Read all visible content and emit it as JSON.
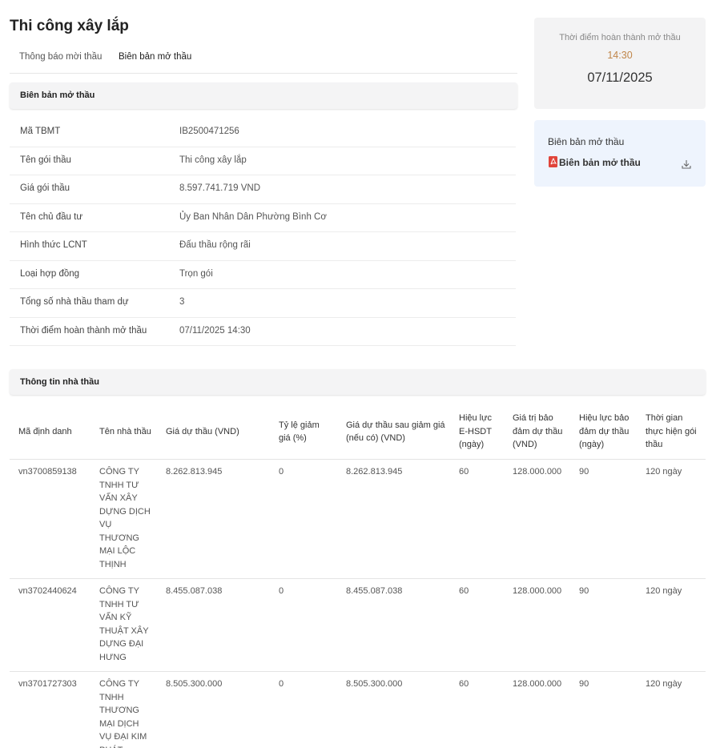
{
  "header": {
    "title": "Thi công xây lắp",
    "tabs": [
      "Thông báo mời thầu",
      "Biên bản mở thầu"
    ]
  },
  "summary_card": {
    "label": "Thời điểm hoàn thành mở thầu",
    "time": "14:30",
    "date": "07/11/2025"
  },
  "document_card": {
    "title": "Biên bản mở thầu",
    "file": "Biên bản mở thầu"
  },
  "info_section": {
    "title": "Biên bản mở thầu",
    "rows": [
      [
        "Mã TBMT",
        "IB2500471256"
      ],
      [
        "Tên gói thầu",
        "Thi công xây lắp"
      ],
      [
        "Giá gói thầu",
        "8.597.741.719 VND"
      ],
      [
        "Tên chủ đầu tư",
        "Ủy Ban Nhân Dân Phường Bình Cơ"
      ],
      [
        "Hình thức LCNT",
        "Đấu thầu rộng rãi"
      ],
      [
        "Loại hợp đồng",
        "Trọn gói"
      ],
      [
        "Tổng số nhà thầu tham dự",
        "3"
      ],
      [
        "Thời điểm hoàn thành mở thầu",
        "07/11/2025 14:30"
      ]
    ]
  },
  "bidders": {
    "title": "Thông tin nhà thầu",
    "columns": [
      "Mã định danh",
      "Tên nhà thầu",
      "Giá dự thầu (VND)",
      "Tỷ lệ giảm giá (%)",
      "Giá dự thầu sau giảm giá (nếu có) (VND)",
      "Hiệu lực E-HSDT (ngày)",
      "Giá trị bảo đảm dự thầu (VND)",
      "Hiệu lực bảo đảm dự thầu (ngày)",
      "Thời gian thực hiện gói thầu"
    ],
    "rows": [
      [
        "vn3700859138",
        "CÔNG TY TNHH TƯ VẤN XÂY DỰNG DỊCH VỤ THƯƠNG MẠI LỘC THỊNH",
        "8.262.813.945",
        "0",
        "8.262.813.945",
        "60",
        "128.000.000",
        "90",
        "120 ngày"
      ],
      [
        "vn3702440624",
        "CÔNG TY TNHH TƯ VẤN KỸ THUẬT XÂY DỰNG ĐẠI HƯNG",
        "8.455.087.038",
        "0",
        "8.455.087.038",
        "60",
        "128.000.000",
        "90",
        "120 ngày"
      ],
      [
        "vn3701727303",
        "CÔNG TY TNHH THƯƠNG MẠI DỊCH VỤ ĐẠI KIM PHÁT",
        "8.505.300.000",
        "0",
        "8.505.300.000",
        "60",
        "128.000.000",
        "90",
        "120 ngày"
      ]
    ]
  }
}
